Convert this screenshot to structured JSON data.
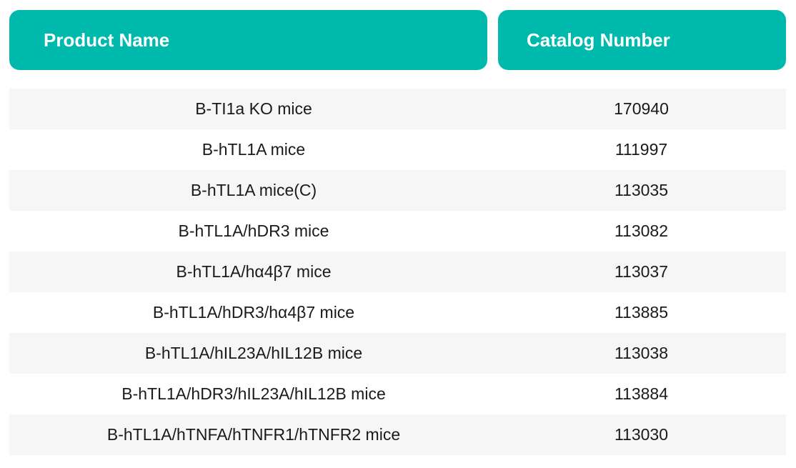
{
  "headers": {
    "product_name": "Product Name",
    "catalog_number": "Catalog Number"
  },
  "colors": {
    "header_background": "#00b9ad",
    "header_text": "#ffffff",
    "row_shade": "#f6f6f6"
  },
  "rows": [
    {
      "name": "B-TI1a KO mice",
      "catalog": "170940"
    },
    {
      "name": "B-hTL1A mice",
      "catalog": "111997"
    },
    {
      "name": "B-hTL1A mice(C)",
      "catalog": "113035"
    },
    {
      "name": "B-hTL1A/hDR3 mice",
      "catalog": "113082"
    },
    {
      "name": "B-hTL1A/hα4β7 mice",
      "catalog": "113037"
    },
    {
      "name": "B-hTL1A/hDR3/hα4β7 mice",
      "catalog": "113885"
    },
    {
      "name": "B-hTL1A/hIL23A/hIL12B mice",
      "catalog": "113038"
    },
    {
      "name": "B-hTL1A/hDR3/hIL23A/hIL12B mice",
      "catalog": "113884"
    },
    {
      "name": "B-hTL1A/hTNFA/hTNFR1/hTNFR2 mice",
      "catalog": "113030"
    }
  ]
}
